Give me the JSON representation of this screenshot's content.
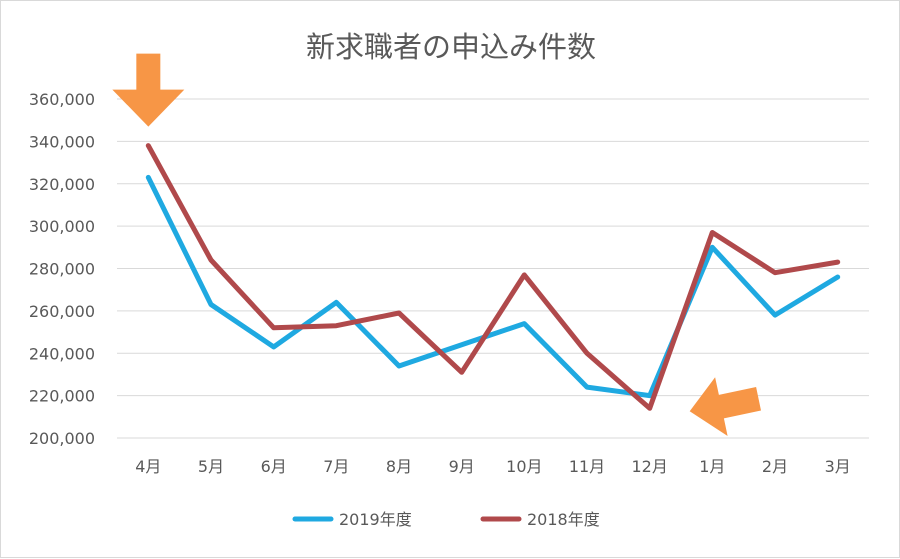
{
  "chart_data": {
    "type": "line",
    "title": "新求職者の申込み件数",
    "categories": [
      "4月",
      "5月",
      "6月",
      "7月",
      "8月",
      "9月",
      "10月",
      "11月",
      "12月",
      "1月",
      "2月",
      "3月"
    ],
    "y_ticks": [
      "200,000",
      "220,000",
      "240,000",
      "260,000",
      "280,000",
      "300,000",
      "320,000",
      "340,000",
      "360,000"
    ],
    "ylim": [
      200000,
      360000
    ],
    "grid": true,
    "legend_position": "bottom",
    "series": [
      {
        "name": "2019年度",
        "color": "#1FA9E1",
        "values": [
          323000,
          263000,
          243000,
          264000,
          234000,
          244000,
          254000,
          224000,
          220000,
          290000,
          258000,
          276000
        ]
      },
      {
        "name": "2018年度",
        "color": "#B0494B",
        "values": [
          338000,
          284000,
          252000,
          253000,
          259000,
          231000,
          277000,
          240000,
          214000,
          297000,
          278000,
          283000
        ]
      }
    ],
    "annotations": [
      {
        "type": "arrow",
        "direction": "down",
        "color": "#F79646",
        "points_to": "4月"
      },
      {
        "type": "arrow",
        "direction": "down-left",
        "color": "#F79646",
        "points_to": "12月"
      }
    ]
  }
}
